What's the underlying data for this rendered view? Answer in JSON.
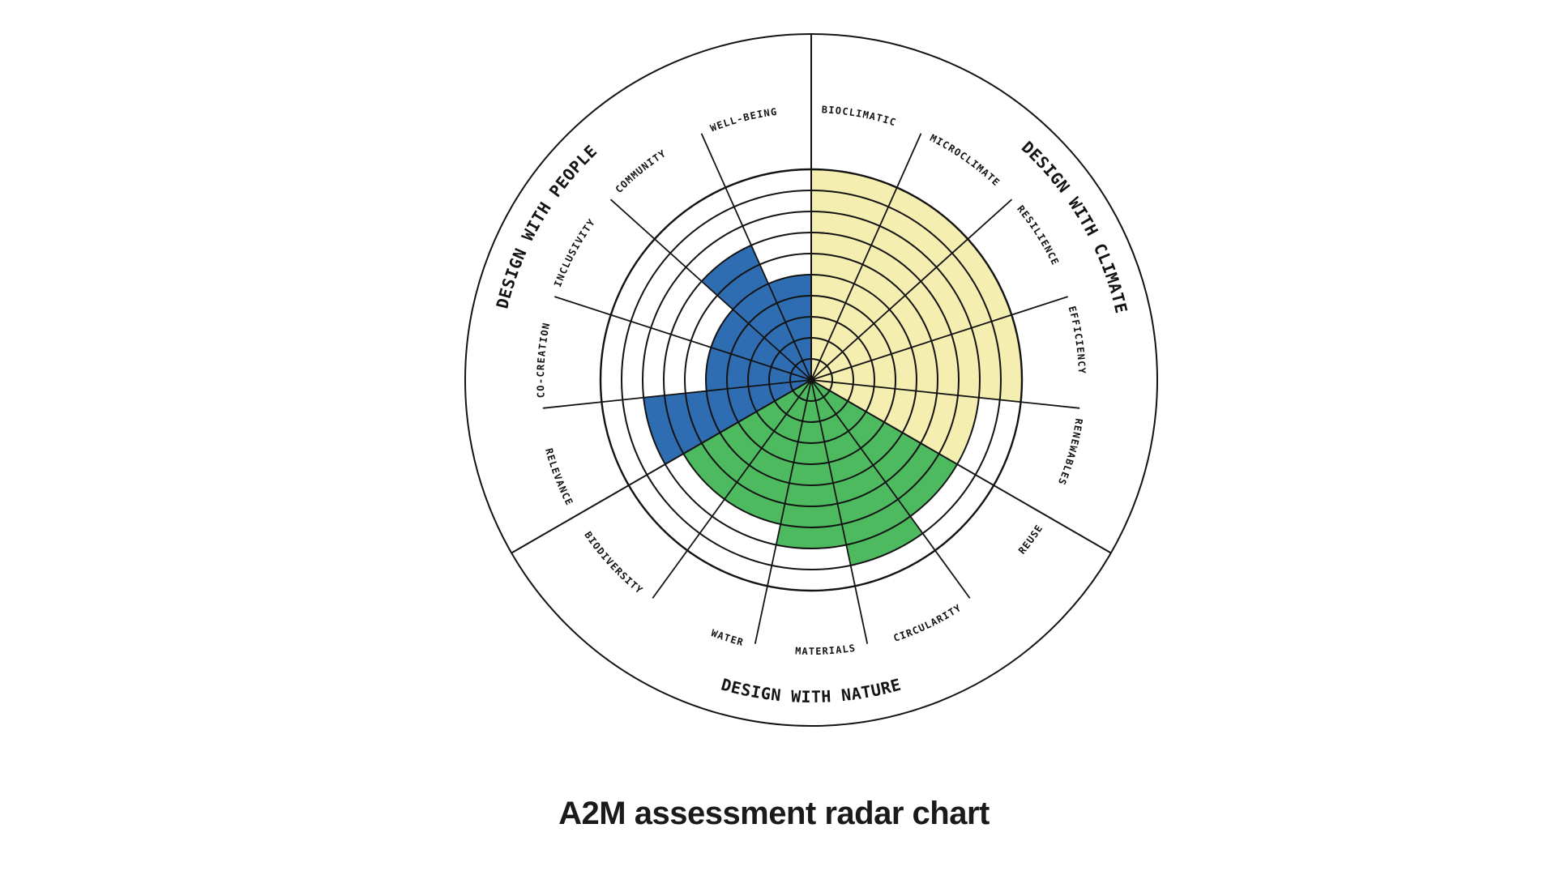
{
  "figure": {
    "caption": "A2M assessment radar chart"
  },
  "chart_data": {
    "type": "radar-polar",
    "title": "A2M assessment radar chart",
    "scale": {
      "min": 0,
      "max": 10,
      "rings": 10,
      "grid": "on"
    },
    "grid_color": "#131313",
    "background": "#ffffff",
    "sections": [
      {
        "name": "DESIGN WITH CLIMATE",
        "color": "#F4EEB0",
        "start_angle_deg": 0,
        "categories": [
          {
            "label": "BIOCLIMATIC",
            "value": 10
          },
          {
            "label": "MICROCLIMATE",
            "value": 10
          },
          {
            "label": "RESILIENCE",
            "value": 10
          },
          {
            "label": "EFFICIENCY",
            "value": 10
          },
          {
            "label": "RENEWABLES",
            "value": 8
          }
        ]
      },
      {
        "name": "DESIGN WITH NATURE",
        "color": "#4DBA60",
        "start_angle_deg": 120,
        "categories": [
          {
            "label": "REUSE",
            "value": 8
          },
          {
            "label": "CIRCULARITY",
            "value": 9
          },
          {
            "label": "MATERIALS",
            "value": 8
          },
          {
            "label": "WATER",
            "value": 7
          },
          {
            "label": "BIODIVERSITY",
            "value": 7
          }
        ]
      },
      {
        "name": "DESIGN WITH PEOPLE",
        "color": "#2F6DB3",
        "start_angle_deg": 240,
        "categories": [
          {
            "label": "RELEVANCE",
            "value": 8
          },
          {
            "label": "CO-CREATION",
            "value": 5
          },
          {
            "label": "INCLUSIVITY",
            "value": 5
          },
          {
            "label": "COMMUNITY",
            "value": 7
          },
          {
            "label": "WELL-BEING",
            "value": 5
          }
        ]
      }
    ]
  }
}
